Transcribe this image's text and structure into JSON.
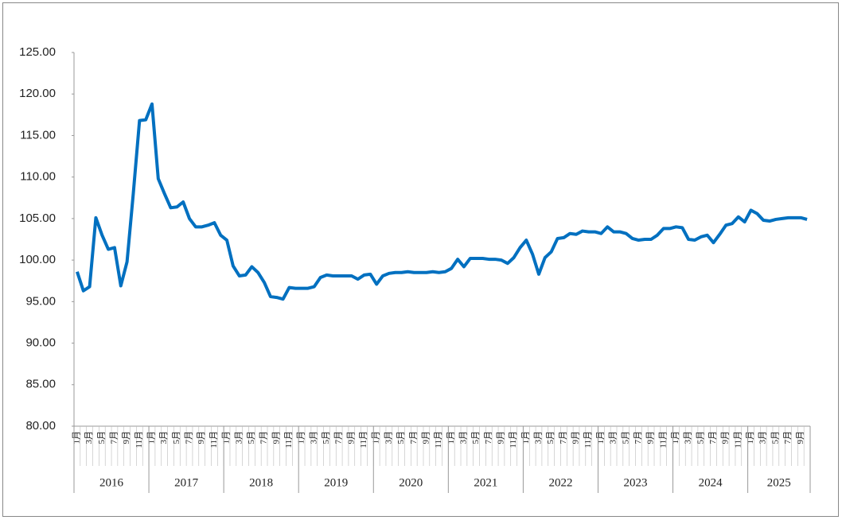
{
  "chart_data": {
    "type": "line",
    "color": "#0070c0",
    "grid": false,
    "ylim": [
      80,
      125
    ],
    "yticks": [
      {
        "value": 80,
        "label": "80.00"
      },
      {
        "value": 85,
        "label": "85.00"
      },
      {
        "value": 90,
        "label": "90.00"
      },
      {
        "value": 95,
        "label": "95.00"
      },
      {
        "value": 100,
        "label": "100.00"
      },
      {
        "value": 105,
        "label": "105.00"
      },
      {
        "value": 110,
        "label": "110.00"
      },
      {
        "value": 115,
        "label": "115.00"
      },
      {
        "value": 120,
        "label": "120.00"
      },
      {
        "value": 125,
        "label": "125.00"
      }
    ],
    "years": [
      "2016",
      "2017",
      "2018",
      "2019",
      "2020",
      "2021",
      "2022",
      "2023",
      "2024",
      "2025"
    ],
    "categories": [
      "1月",
      null,
      "3月",
      null,
      "5月",
      null,
      "7月",
      null,
      "9月",
      null,
      "11月",
      null,
      "1月",
      null,
      "3月",
      null,
      "5月",
      null,
      "7月",
      null,
      "9月",
      null,
      "11月",
      null,
      "1月",
      null,
      "3月",
      null,
      "5月",
      null,
      "7月",
      null,
      "9月",
      null,
      "11月",
      null,
      "1月",
      null,
      "3月",
      null,
      "5月",
      null,
      "7月",
      null,
      "9月",
      null,
      "11月",
      null,
      "1月",
      null,
      "3月",
      null,
      "5月",
      null,
      "7月",
      null,
      "9月",
      null,
      "11月",
      null,
      "1月",
      null,
      "3月",
      null,
      "5月",
      null,
      "7月",
      null,
      "9月",
      null,
      "11月",
      null,
      "1月",
      null,
      "3月",
      null,
      "5月",
      null,
      "7月",
      null,
      "9月",
      null,
      "11月",
      null,
      "1月",
      null,
      "3月",
      null,
      "5月",
      null,
      "7月",
      null,
      "9月",
      null,
      "11月",
      null,
      "1月",
      null,
      "3月",
      null,
      "5月",
      null,
      "7月",
      null,
      "9月",
      null,
      "11月",
      null,
      "1月",
      null,
      "3月",
      null,
      "5月",
      null,
      "7月",
      null,
      "9月",
      null
    ],
    "values": [
      98.6,
      96.3,
      96.8,
      105.1,
      103,
      101.3,
      101.5,
      96.9,
      99.8,
      108,
      116.8,
      116.9,
      118.8,
      109.8,
      108,
      106.3,
      106.4,
      107,
      105,
      104,
      104,
      104.2,
      104.5,
      103,
      102.4,
      99.3,
      98.1,
      98.2,
      99.2,
      98.5,
      97.3,
      95.6,
      95.5,
      95.3,
      96.7,
      96.6,
      96.6,
      96.6,
      96.8,
      97.9,
      98.2,
      98.1,
      98.1,
      98.1,
      98.1,
      97.7,
      98.2,
      98.3,
      97.1,
      98.1,
      98.4,
      98.5,
      98.5,
      98.6,
      98.5,
      98.5,
      98.5,
      98.6,
      98.5,
      98.6,
      99,
      100.1,
      99.2,
      100.2,
      100.2,
      100.2,
      100.1,
      100.1,
      100,
      99.6,
      100.3,
      101.5,
      102.4,
      100.7,
      98.3,
      100.3,
      101,
      102.6,
      102.7,
      103.2,
      103.1,
      103.5,
      103.4,
      103.4,
      103.2,
      104,
      103.4,
      103.4,
      103.2,
      102.6,
      102.4,
      102.5,
      102.5,
      103,
      103.8,
      103.8,
      104,
      103.9,
      102.5,
      102.4,
      102.8,
      103,
      102.1,
      103.1,
      104.2,
      104.4,
      105.2,
      104.6,
      106,
      105.6,
      104.8,
      104.7,
      104.9,
      105,
      105.1,
      105.1,
      105.1,
      104.9
    ]
  }
}
